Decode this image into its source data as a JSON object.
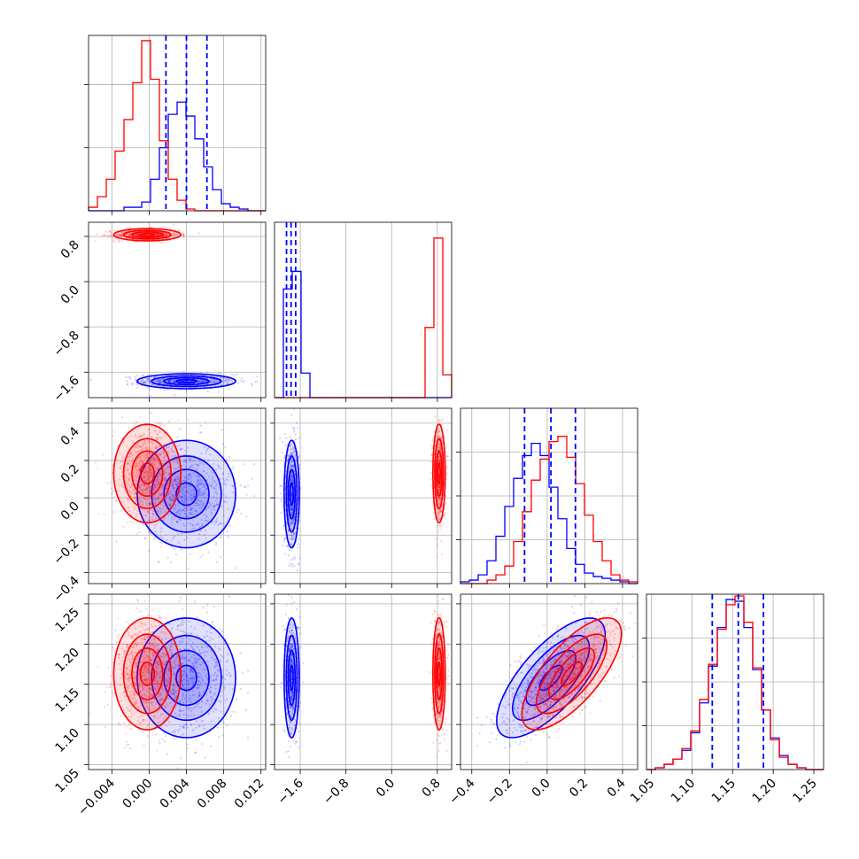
{
  "chart_data": {
    "type": "corner",
    "layout": "lower-triangle 4x4",
    "grid": true,
    "series": [
      {
        "name": "",
        "color": "#0000ff"
      },
      {
        "name": "",
        "color": "#ff0000"
      }
    ],
    "params": [
      {
        "id": "p1",
        "range": [
          -0.0065,
          0.0125
        ],
        "ticks": [
          -0.004,
          0.0,
          0.004,
          0.008,
          0.012
        ],
        "tick_labels": [
          "−0.004",
          "0.000",
          "0.004",
          "0.008",
          "0.012"
        ]
      },
      {
        "id": "p2",
        "range": [
          -2.05,
          1.05
        ],
        "ticks": [
          -1.6,
          -0.8,
          0.0,
          0.8
        ],
        "tick_labels": [
          "−1.6",
          "−0.8",
          "0.0",
          "0.8"
        ]
      },
      {
        "id": "p3",
        "range": [
          -0.46,
          0.48
        ],
        "ticks": [
          -0.4,
          -0.2,
          0.0,
          0.2,
          0.4
        ],
        "tick_labels": [
          "−0.4",
          "−0.2",
          "0.0",
          "0.2",
          "0.4"
        ]
      },
      {
        "id": "p4",
        "range": [
          1.044,
          1.262
        ],
        "ticks": [
          1.05,
          1.1,
          1.15,
          1.2,
          1.25
        ],
        "tick_labels": [
          "1.05",
          "1.10",
          "1.15",
          "1.20",
          "1.25"
        ]
      }
    ],
    "marginals": [
      {
        "param": 0,
        "bins": [
          -0.0065,
          0.0125
        ],
        "nbins": 20,
        "ymax": 1.0,
        "yticks": [
          0.36,
          0.72
        ],
        "quantiles_blue": [
          0.0018,
          0.004,
          0.0062
        ],
        "blue": [
          0,
          0,
          0,
          0,
          0.02,
          0.02,
          0.05,
          0.18,
          0.36,
          0.55,
          0.62,
          0.54,
          0.41,
          0.25,
          0.12,
          0.04,
          0.02,
          0.01,
          0.0,
          0.0
        ],
        "red": [
          0.02,
          0.08,
          0.18,
          0.34,
          0.52,
          0.73,
          0.97,
          0.75,
          0.4,
          0.18,
          0.06,
          0.01,
          0.0,
          0.0,
          0.0,
          0.0,
          0.0,
          0.0,
          0.0,
          0.0
        ]
      },
      {
        "param": 1,
        "bins": [
          -2.05,
          1.05
        ],
        "nbins": 20,
        "ymax": 1.0,
        "yticks": [],
        "quantiles_blue": [
          -1.84,
          -1.76,
          -1.68
        ],
        "blue": [
          0,
          0.62,
          0.72,
          0.14,
          0,
          0,
          0,
          0,
          0,
          0,
          0,
          0,
          0,
          0,
          0,
          0,
          0,
          0,
          0,
          0
        ],
        "red": [
          0,
          0,
          0,
          0,
          0,
          0,
          0,
          0,
          0,
          0,
          0,
          0,
          0,
          0,
          0,
          0,
          0,
          0.4,
          0.91,
          0.13
        ]
      },
      {
        "param": 2,
        "bins": [
          -0.46,
          0.48
        ],
        "nbins": 20,
        "ymax": 1.0,
        "yticks": [
          0.25,
          0.5,
          0.75
        ],
        "quantiles_blue": [
          -0.12,
          0.02,
          0.15
        ],
        "blue": [
          0.01,
          0.02,
          0.05,
          0.13,
          0.27,
          0.44,
          0.6,
          0.73,
          0.8,
          0.73,
          0.55,
          0.37,
          0.2,
          0.11,
          0.06,
          0.04,
          0.03,
          0.02,
          0.01,
          0.0
        ],
        "red": [
          0.0,
          0.0,
          0.0,
          0.02,
          0.05,
          0.1,
          0.24,
          0.41,
          0.59,
          0.71,
          0.81,
          0.84,
          0.72,
          0.57,
          0.39,
          0.24,
          0.13,
          0.05,
          0.02,
          0.01
        ]
      },
      {
        "param": 3,
        "bins": [
          1.044,
          1.262
        ],
        "nbins": 20,
        "ymax": 1.0,
        "yticks": [
          0.25,
          0.5,
          0.75
        ],
        "quantiles_blue": [
          1.125,
          1.157,
          1.188
        ],
        "blue": [
          0.0,
          0.01,
          0.03,
          0.06,
          0.11,
          0.21,
          0.38,
          0.59,
          0.81,
          0.97,
          0.96,
          0.81,
          0.57,
          0.34,
          0.18,
          0.08,
          0.03,
          0.01,
          0.0,
          0.0
        ],
        "red": [
          0.0,
          0.01,
          0.03,
          0.06,
          0.12,
          0.22,
          0.4,
          0.6,
          0.8,
          0.94,
          0.99,
          0.84,
          0.58,
          0.34,
          0.17,
          0.07,
          0.03,
          0.01,
          0.0,
          0.0
        ]
      }
    ],
    "pairs": [
      {
        "row": 1,
        "col": 0,
        "blue": {
          "mx": 0.004,
          "my": -1.76,
          "sx": 0.0022,
          "sy": 0.055,
          "rho": 0.0
        },
        "red": {
          "mx": -0.0002,
          "my": 0.83,
          "sx": 0.0015,
          "sy": 0.045,
          "rho": 0.0
        }
      },
      {
        "row": 2,
        "col": 0,
        "blue": {
          "mx": 0.004,
          "my": 0.02,
          "sx": 0.0022,
          "sy": 0.12,
          "rho": 0.0
        },
        "red": {
          "mx": -0.0002,
          "my": 0.13,
          "sx": 0.0015,
          "sy": 0.11,
          "rho": 0.0
        }
      },
      {
        "row": 3,
        "col": 0,
        "blue": {
          "mx": 0.004,
          "my": 1.158,
          "sx": 0.0022,
          "sy": 0.031,
          "rho": 0.0
        },
        "red": {
          "mx": -0.0002,
          "my": 1.163,
          "sx": 0.0015,
          "sy": 0.029,
          "rho": 0.0
        }
      },
      {
        "row": 2,
        "col": 1,
        "blue": {
          "mx": -1.75,
          "my": 0.02,
          "sx": 0.055,
          "sy": 0.12,
          "rho": 0.0
        },
        "red": {
          "mx": 0.83,
          "my": 0.13,
          "sx": 0.045,
          "sy": 0.11,
          "rho": 0.0
        }
      },
      {
        "row": 3,
        "col": 1,
        "blue": {
          "mx": -1.75,
          "my": 1.158,
          "sx": 0.055,
          "sy": 0.031,
          "rho": 0.0
        },
        "red": {
          "mx": 0.83,
          "my": 1.163,
          "sx": 0.045,
          "sy": 0.029,
          "rho": 0.0
        }
      },
      {
        "row": 3,
        "col": 2,
        "blue": {
          "mx": 0.02,
          "my": 1.158,
          "sx": 0.12,
          "sy": 0.031,
          "rho": 0.72
        },
        "red": {
          "mx": 0.13,
          "my": 1.163,
          "sx": 0.11,
          "sy": 0.029,
          "rho": 0.72
        }
      }
    ]
  }
}
